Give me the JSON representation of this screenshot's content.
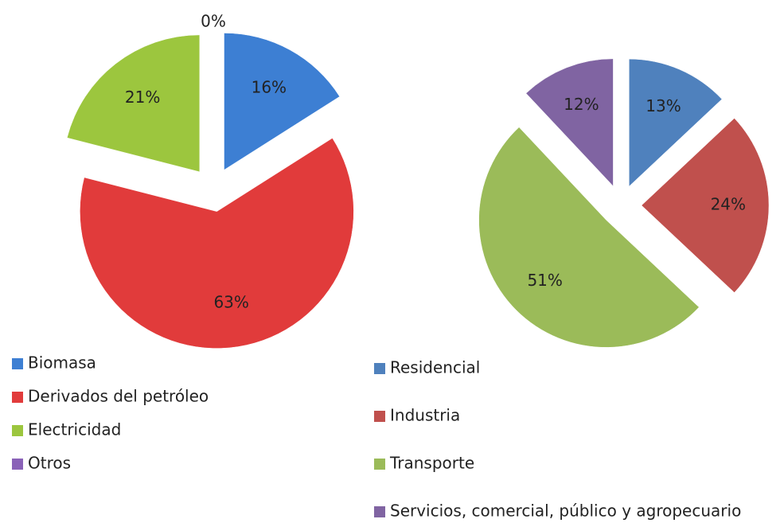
{
  "chart_data": [
    {
      "type": "pie",
      "categories": [
        "Biomasa",
        "Derivados del petróleo",
        "Electricidad",
        "Otros"
      ],
      "values": [
        16,
        63,
        21,
        0
      ],
      "value_labels": [
        "16%",
        "63%",
        "21%",
        "0%"
      ],
      "colors": [
        "#3d7fd3",
        "#e13b3b",
        "#9cc63e",
        "#8a62b8"
      ]
    },
    {
      "type": "pie",
      "categories": [
        "Residencial",
        "Industria",
        "Transporte",
        "Servicios, comercial, público y agropecuario"
      ],
      "values": [
        13,
        24,
        51,
        12
      ],
      "value_labels": [
        "13%",
        "24%",
        "51%",
        "12%"
      ],
      "colors": [
        "#4f81bd",
        "#c0504d",
        "#9bbb59",
        "#8064a2"
      ]
    }
  ]
}
